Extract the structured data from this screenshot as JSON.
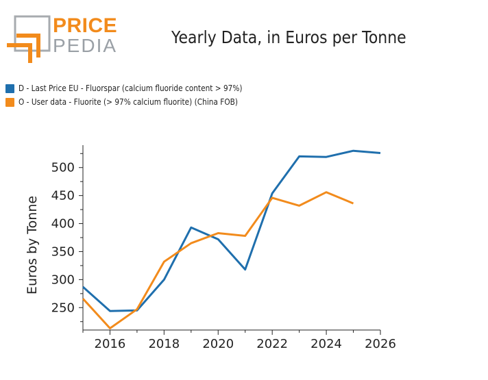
{
  "brand": {
    "line1": "PRICE",
    "line2": "PEDIA",
    "accent": "#f28b1c",
    "gray": "#9aa0a6"
  },
  "chart_data": {
    "type": "line",
    "title": "Yearly Data, in Euros per Tonne",
    "xlabel": "",
    "ylabel": "Euros by Tonne",
    "xlim": [
      2015,
      2026
    ],
    "ylim": [
      210,
      540
    ],
    "xticks": [
      2016,
      2018,
      2020,
      2022,
      2024,
      2026
    ],
    "yticks": [
      250,
      300,
      350,
      400,
      450,
      500
    ],
    "grid": false,
    "legend_position": "top-left",
    "series": [
      {
        "name": "D - Last Price EU - Fluorspar (calcium fluoride content > 97%)",
        "color": "#1f6fad",
        "x": [
          2015,
          2016,
          2017,
          2018,
          2019,
          2020,
          2021,
          2022,
          2023,
          2024,
          2025,
          2026
        ],
        "y": [
          287,
          244,
          245,
          300,
          393,
          372,
          318,
          454,
          520,
          519,
          530,
          526
        ]
      },
      {
        "name": "O - User data - Fluorite (> 97% calcium fluorite) (China FOB)",
        "color": "#f28b1c",
        "x": [
          2015,
          2016,
          2017,
          2018,
          2019,
          2020,
          2021,
          2022,
          2023,
          2024,
          2025
        ],
        "y": [
          266,
          213,
          247,
          332,
          365,
          383,
          378,
          446,
          432,
          456,
          436
        ]
      }
    ]
  }
}
